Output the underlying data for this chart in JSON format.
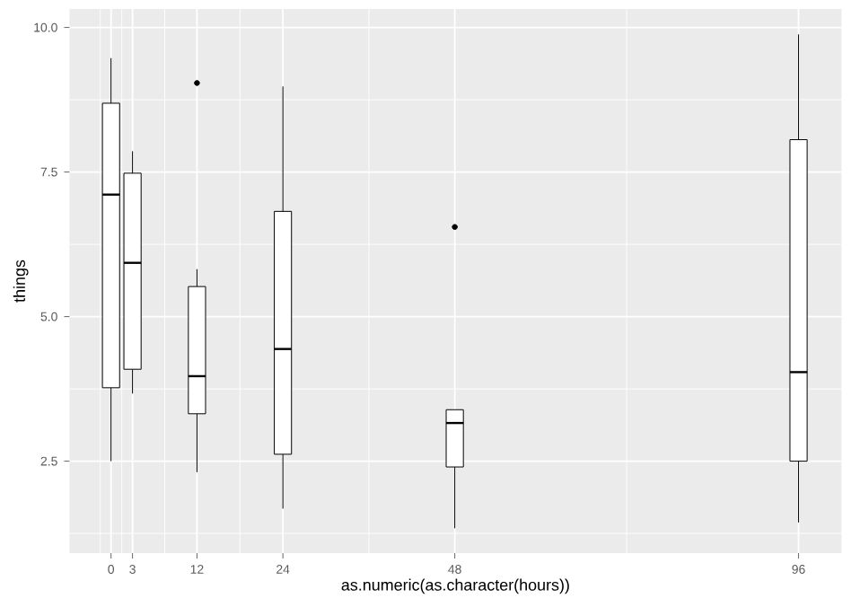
{
  "chart_data": {
    "type": "box",
    "xlabel": "as.numeric(as.character(hours))",
    "ylabel": "things",
    "x": [
      0,
      3,
      12,
      24,
      48,
      96
    ],
    "boxes": [
      {
        "low": 2.5,
        "q1": 3.77,
        "median": 7.11,
        "q3": 8.69,
        "high": 9.47
      },
      {
        "low": 3.67,
        "q1": 4.09,
        "median": 5.93,
        "q3": 7.48,
        "high": 7.86
      },
      {
        "low": 2.31,
        "q1": 3.32,
        "median": 3.97,
        "q3": 5.52,
        "high": 5.82,
        "outliers": [
          9.04
        ]
      },
      {
        "low": 1.68,
        "q1": 2.62,
        "median": 4.44,
        "q3": 6.82,
        "high": 8.98
      },
      {
        "low": 1.34,
        "q1": 2.4,
        "median": 3.16,
        "q3": 3.39,
        "high": 3.39,
        "outliers": [
          6.55
        ]
      },
      {
        "low": 1.44,
        "q1": 2.5,
        "median": 4.04,
        "q3": 8.06,
        "high": 9.88
      }
    ],
    "xlim": [
      -5.8,
      102
    ],
    "ylim": [
      0.91,
      10.32
    ],
    "xticks": [
      0,
      3,
      12,
      24,
      48,
      96
    ],
    "yticks": [
      {
        "value": 2.5,
        "label": "2.5"
      },
      {
        "value": 5,
        "label": "5.0"
      },
      {
        "value": 7.5,
        "label": "7.5"
      },
      {
        "value": 10,
        "label": "10.0"
      }
    ],
    "grid": true
  }
}
